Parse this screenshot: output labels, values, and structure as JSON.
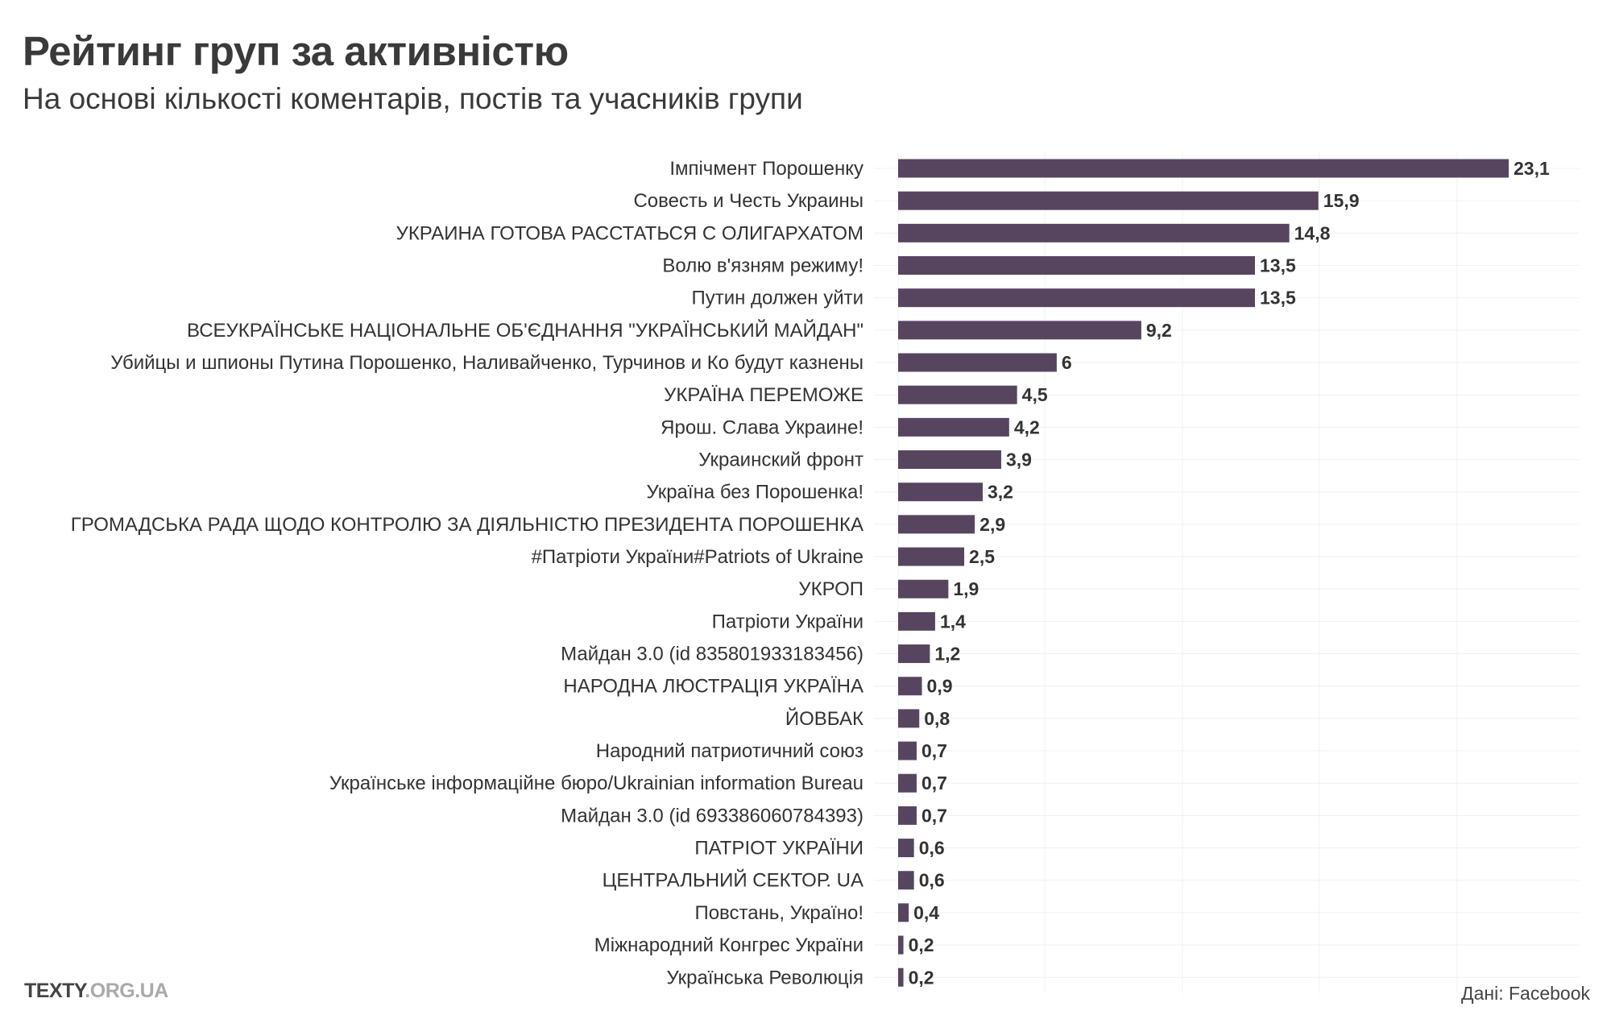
{
  "header": {
    "title": "Рейтинг груп за активністю",
    "subtitle": "На основі кількості коментарів, постів та учасників групи"
  },
  "footer": {
    "logo_main": "TEXTY",
    "logo_domain": ".ORG.UA",
    "source": "Дані: Facebook"
  },
  "chart_data": {
    "type": "bar",
    "orientation": "horizontal",
    "title": "Рейтинг груп за активністю",
    "subtitle": "На основі кількості коментарів, постів та учасників групи",
    "bar_color": "#574560",
    "grid": true,
    "categories": [
      "Імпічмент Порошенку",
      "Совесть и Честь Украины",
      "УКРАИНА ГОТОВА РАССТАТЬСЯ С ОЛИГАРХАТОМ",
      "Волю в'язням режиму!",
      "Путин должен уйти",
      "ВСЕУКРАЇНСЬКЕ НАЦІОНАЛЬНЕ ОБ'ЄДНАННЯ \"УКРАЇНСЬКИЙ МАЙДАН\"",
      "Убийцы и шпионы Путина Порошенко, Наливайченко, Турчинов и Ко будут казнены",
      "УКРАЇНА ПЕРЕМОЖЕ",
      "Ярош. Слава Украине!",
      "Украинский фронт",
      "Україна без Порошенка!",
      "ГРОМАДСЬКА РАДА ЩОДО КОНТРОЛЮ ЗА ДІЯЛЬНІСТЮ ПРЕЗИДЕНТА ПОРОШЕНКА",
      "#Патріоти України#Patriots of Ukraine",
      "УКРОП",
      "Патріоти України",
      "Майдан 3.0 (id 835801933183456)",
      "НАРОДНА ЛЮСТРАЦІЯ УКРАЇНА",
      "ЙОВБАК",
      "Народний патриотичний союз",
      "Українське інформаційне бюро/Ukrainian information Bureau",
      "Майдан 3.0 (id 693386060784393)",
      "ПАТРІОТ УКРАЇНИ",
      "ЦЕНТРАЛЬНИЙ СЕКТОР. UA",
      "Повстань, Україно!",
      "Міжнародний Конгрес України",
      "Українська Революція"
    ],
    "values": [
      23.1,
      15.9,
      14.8,
      13.5,
      13.5,
      9.2,
      6,
      4.5,
      4.2,
      3.9,
      3.2,
      2.9,
      2.5,
      1.9,
      1.4,
      1.2,
      0.9,
      0.8,
      0.7,
      0.7,
      0.7,
      0.6,
      0.6,
      0.4,
      0.2,
      0.2
    ],
    "value_labels": [
      "23,1",
      "15,9",
      "14,8",
      "13,5",
      "13,5",
      "9,2",
      "6",
      "4,5",
      "4,2",
      "3,9",
      "3,2",
      "2,9",
      "2,5",
      "1,9",
      "1,4",
      "1,2",
      "0,9",
      "0,8",
      "0,7",
      "0,7",
      "0,7",
      "0,6",
      "0,6",
      "0,4",
      "0,2",
      "0,2"
    ]
  }
}
